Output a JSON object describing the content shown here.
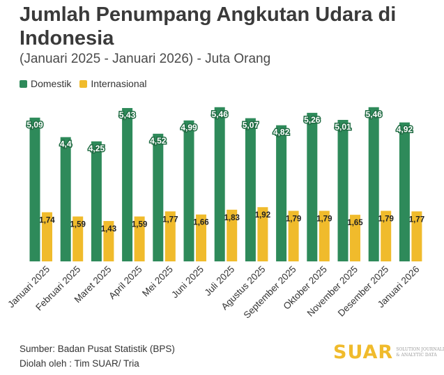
{
  "chart_data": {
    "type": "bar",
    "title": "Jumlah Penumpang Angkutan Udara di Indonesia",
    "subtitle": "(Januari 2025 - Januari 2026) - Juta Orang",
    "xlabel": "",
    "ylabel": "Juta Orang",
    "ylim": [
      0,
      5.8
    ],
    "grid": false,
    "legend_position": "top-left",
    "categories": [
      "Januari 2025",
      "Februari 2025",
      "Maret 2025",
      "April 2025",
      "Mei 2025",
      "Juni 2025",
      "Juli 2025",
      "Agustus 2025",
      "September 2025",
      "Oktober 2025",
      "November 2025",
      "Desember 2025",
      "Januari 2026"
    ],
    "series": [
      {
        "name": "Domestik",
        "color": "#2e8a5a",
        "values": [
          5.09,
          4.4,
          4.25,
          5.43,
          4.52,
          4.99,
          5.46,
          5.07,
          4.82,
          5.26,
          5.01,
          5.46,
          4.92
        ],
        "labels": [
          "5,09",
          "4,4",
          "4,25",
          "5,43",
          "4,52",
          "4,99",
          "5,46",
          "5,07",
          "4,82",
          "5,26",
          "5,01",
          "5,46",
          "4,92"
        ]
      },
      {
        "name": "Internasional",
        "color": "#f0bb2c",
        "values": [
          1.74,
          1.59,
          1.43,
          1.59,
          1.77,
          1.66,
          1.83,
          1.92,
          1.79,
          1.79,
          1.65,
          1.79,
          1.77
        ],
        "labels": [
          "1,74",
          "1,59",
          "1,43",
          "1,59",
          "1,77",
          "1,66",
          "1,83",
          "1,92",
          "1,79",
          "1,79",
          "1,65",
          "1,79",
          "1,77"
        ]
      }
    ]
  },
  "legend": {
    "domestic_label": "Domestik",
    "international_label": "Internasional",
    "domestic_color": "#2e8a5a",
    "international_color": "#f0bb2c"
  },
  "footer": {
    "source_line": "Sumber: Badan Pusat Statistik (BPS)",
    "processed_line": "Diolah oleh : Tim SUAR/ Tria"
  },
  "brand": {
    "logo_text": "SUAR",
    "logo_color": "#f0bb2c",
    "tagline": "SOLUTION JOURNALISM & ANALYTIC DATA"
  }
}
